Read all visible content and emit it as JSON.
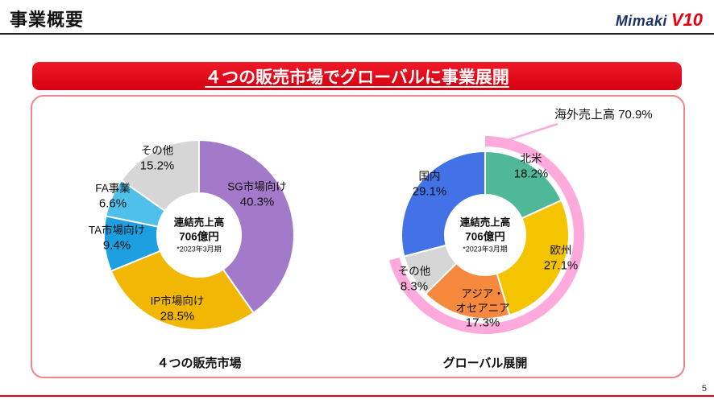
{
  "header": {
    "title": "事業概要",
    "logo": {
      "brand": "Mimaki",
      "version": "V10"
    }
  },
  "banner": {
    "text": "４つの販売市場でグローバルに事業展開"
  },
  "page_number": "5",
  "theme": {
    "banner_red": "#e3000f",
    "card_border_pink": "#f2858c",
    "bottom_line_red": "#e60012",
    "logo_navy": "#1c2f69",
    "logo_red": "#e60012",
    "overseas_ring_pink": "#ffa9dc"
  },
  "chart_data": [
    {
      "type": "pie",
      "donut": true,
      "title": "４つの販売市場",
      "center_label": [
        "連結売上高",
        "706億円",
        "*2023年3月期"
      ],
      "segments": [
        {
          "label": "SG市場向け",
          "value": 40.3,
          "color": "#a379c9"
        },
        {
          "label": "IP市場向け",
          "value": 28.5,
          "color": "#f2b705"
        },
        {
          "label": "TA市場向け",
          "value": 9.4,
          "color": "#1e9fe0"
        },
        {
          "label": "FA事業",
          "value": 6.6,
          "color": "#4fc0ea"
        },
        {
          "label": "その他",
          "value": 15.2,
          "color": "#d6d6d6"
        }
      ]
    },
    {
      "type": "pie",
      "donut": true,
      "title": "グローバル展開",
      "center_label": [
        "連結売上高",
        "706億円",
        "*2023年3月期"
      ],
      "segments": [
        {
          "label": "北米",
          "value": 18.2,
          "color": "#4fb898"
        },
        {
          "label": "欧州",
          "value": 27.1,
          "color": "#f5c400"
        },
        {
          "label": "アジア・オセアニア",
          "value": 17.3,
          "color": "#f6893d"
        },
        {
          "label": "その他",
          "value": 8.3,
          "color": "#d6d6d6"
        },
        {
          "label": "国内",
          "value": 29.1,
          "color": "#4372e6"
        }
      ],
      "outer_ring": {
        "label": "海外売上高",
        "value": 70.9,
        "color": "#ffa9dc"
      }
    }
  ]
}
